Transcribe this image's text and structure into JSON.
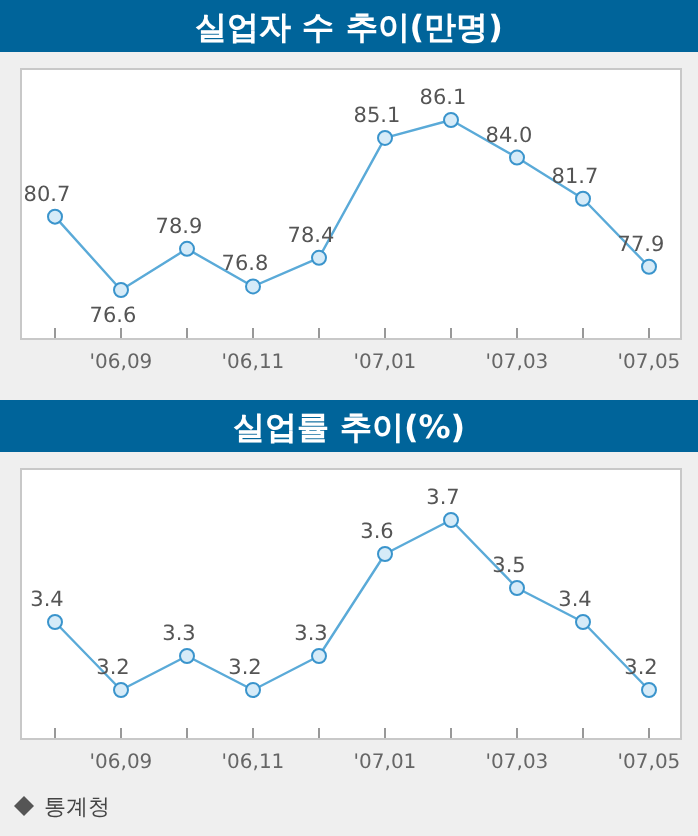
{
  "chart_data": [
    {
      "type": "line",
      "title": "실업자 수 추이(만명)",
      "categories": [
        null,
        "'06,09",
        null,
        "'06,11",
        null,
        "'07,01",
        null,
        "'07,03",
        null,
        "'07,05"
      ],
      "series": [
        {
          "color": "#5aaad8",
          "values": [
            80.7,
            76.6,
            78.9,
            76.8,
            78.4,
            85.1,
            86.1,
            84.0,
            81.7,
            77.9
          ],
          "value_labels": [
            "80.7",
            "76.6",
            "78.9",
            "76.8",
            "78.4",
            "85.1",
            "86.1",
            "84.0",
            "81.7",
            "77.9"
          ]
        }
      ],
      "marker": "circle",
      "data_labels": true
    },
    {
      "type": "line",
      "title": "실업률 추이(%)",
      "categories": [
        null,
        "'06,09",
        null,
        "'06,11",
        null,
        "'07,01",
        null,
        "'07,03",
        null,
        "'07,05"
      ],
      "series": [
        {
          "color": "#5aaad8",
          "values": [
            3.4,
            3.2,
            3.3,
            3.2,
            3.3,
            3.6,
            3.7,
            3.5,
            3.4,
            3.2
          ]
        }
      ],
      "marker": "circle",
      "data_labels": true,
      "annotations": [
        "통계청"
      ]
    }
  ]
}
